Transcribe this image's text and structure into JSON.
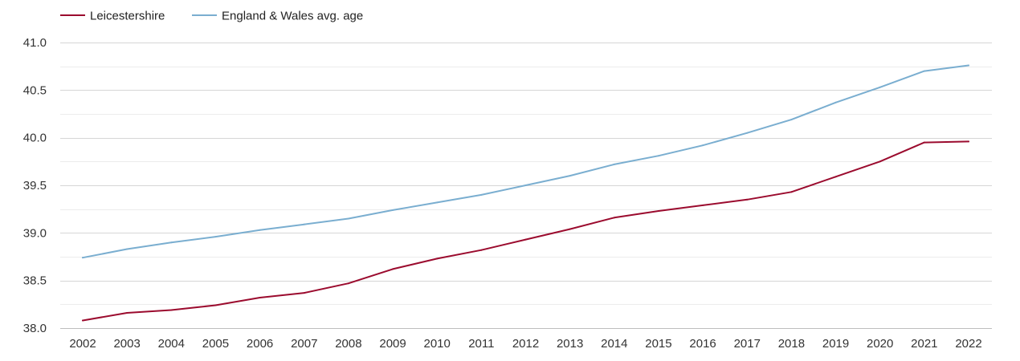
{
  "chart_data": {
    "type": "line",
    "title": "",
    "xlabel": "",
    "ylabel": "",
    "x": [
      "2002",
      "2003",
      "2004",
      "2005",
      "2006",
      "2007",
      "2008",
      "2009",
      "2010",
      "2011",
      "2012",
      "2013",
      "2014",
      "2015",
      "2016",
      "2017",
      "2018",
      "2019",
      "2020",
      "2021",
      "2022"
    ],
    "ylim": [
      38.0,
      41.0
    ],
    "yticks": [
      "38.0",
      "38.5",
      "39.0",
      "39.5",
      "40.0",
      "40.5",
      "41.0"
    ],
    "grid": true,
    "legend_position": "top-left",
    "series": [
      {
        "name": "Leicestershire",
        "color": "#9b0b2e",
        "values": [
          38.08,
          38.16,
          38.19,
          38.24,
          38.32,
          38.37,
          38.47,
          38.62,
          38.73,
          38.82,
          38.93,
          39.04,
          39.16,
          39.23,
          39.29,
          39.35,
          39.43,
          39.59,
          39.75,
          39.95,
          39.96
        ]
      },
      {
        "name": "England & Wales avg. age",
        "color": "#7aaed0",
        "values": [
          38.74,
          38.83,
          38.9,
          38.96,
          39.03,
          39.09,
          39.15,
          39.24,
          39.32,
          39.4,
          39.5,
          39.6,
          39.72,
          39.81,
          39.92,
          40.05,
          40.19,
          40.37,
          40.53,
          40.7,
          40.76
        ]
      }
    ]
  }
}
